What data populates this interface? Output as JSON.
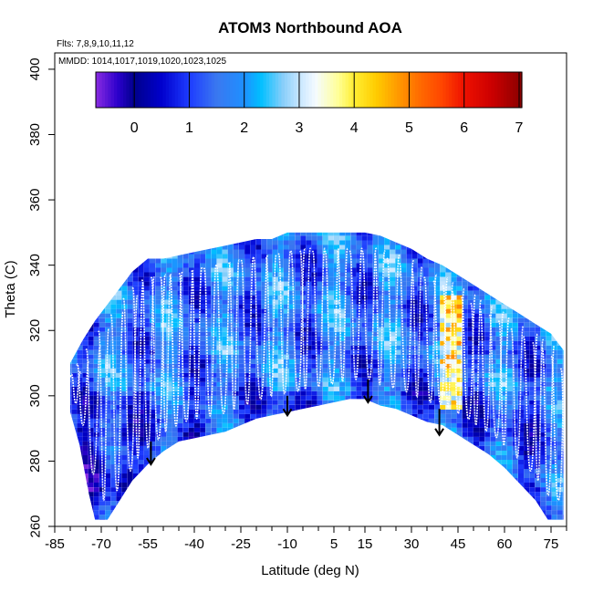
{
  "chart_data": {
    "type": "heatmap",
    "title": "ATOM3 Northbound AOA",
    "annotations": [
      "Flts: 7,8,9,10,11,12",
      "MMDD: 1014,1017,1019,1020,1023,1025"
    ],
    "xlabel": "Latitude (deg N)",
    "ylabel": "Theta (C)",
    "xlim": [
      -85,
      80
    ],
    "ylim": [
      260,
      405
    ],
    "x_ticks": [
      "-85",
      "-70",
      "-55",
      "-40",
      "-25",
      "-10",
      "5",
      "15",
      "30",
      "45",
      "60",
      "75"
    ],
    "x_tick_values": [
      -85,
      -70,
      -55,
      -40,
      -25,
      -10,
      5,
      15,
      30,
      45,
      60,
      75
    ],
    "x_minor_step": 5,
    "y_ticks": [
      "260",
      "280",
      "300",
      "320",
      "340",
      "360",
      "380",
      "400"
    ],
    "y_tick_values": [
      260,
      280,
      300,
      320,
      340,
      360,
      380,
      400
    ],
    "colorbar": {
      "range": [
        -0.7,
        7.05
      ],
      "ticks": [
        "0",
        "1",
        "2",
        "3",
        "4",
        "5",
        "6",
        "7"
      ],
      "tick_values": [
        0,
        1,
        2,
        3,
        4,
        5,
        6,
        7
      ],
      "stops": [
        [
          -0.7,
          "#8a2be2"
        ],
        [
          -0.3,
          "#2b00cc"
        ],
        [
          0.0,
          "#00008b"
        ],
        [
          0.5,
          "#0000cd"
        ],
        [
          1.0,
          "#1e3cff"
        ],
        [
          1.5,
          "#3a78f0"
        ],
        [
          2.0,
          "#1e90ff"
        ],
        [
          2.3,
          "#00bfff"
        ],
        [
          2.7,
          "#87cefa"
        ],
        [
          3.0,
          "#c6e6ff"
        ],
        [
          3.3,
          "#f5fbff"
        ],
        [
          3.7,
          "#ffff99"
        ],
        [
          4.0,
          "#ffee33"
        ],
        [
          4.4,
          "#ffcc00"
        ],
        [
          4.8,
          "#ff9900"
        ],
        [
          5.2,
          "#ff6a00"
        ],
        [
          5.6,
          "#ff4500"
        ],
        [
          6.0,
          "#ee1100"
        ],
        [
          6.5,
          "#cc0000"
        ],
        [
          7.05,
          "#8b0000"
        ]
      ]
    },
    "envelope_top": [
      [
        -80,
        310
      ],
      [
        -76,
        317
      ],
      [
        -72,
        323
      ],
      [
        -68,
        328
      ],
      [
        -64,
        333
      ],
      [
        -60,
        338
      ],
      [
        -55,
        342
      ],
      [
        -50,
        342
      ],
      [
        -45,
        343
      ],
      [
        -40,
        344
      ],
      [
        -35,
        345
      ],
      [
        -30,
        346
      ],
      [
        -25,
        347
      ],
      [
        -20,
        348
      ],
      [
        -15,
        348
      ],
      [
        -10,
        350
      ],
      [
        -5,
        350
      ],
      [
        0,
        350
      ],
      [
        5,
        350
      ],
      [
        10,
        350
      ],
      [
        15,
        350
      ],
      [
        20,
        349
      ],
      [
        25,
        347
      ],
      [
        30,
        345
      ],
      [
        35,
        342
      ],
      [
        40,
        340
      ],
      [
        45,
        337
      ],
      [
        50,
        334
      ],
      [
        55,
        331
      ],
      [
        60,
        328
      ],
      [
        65,
        325
      ],
      [
        70,
        322
      ],
      [
        75,
        319
      ],
      [
        79,
        314
      ]
    ],
    "envelope_bottom": [
      [
        -80,
        295
      ],
      [
        -77,
        285
      ],
      [
        -74,
        270
      ],
      [
        -72,
        262
      ],
      [
        -68,
        262
      ],
      [
        -64,
        268
      ],
      [
        -60,
        274
      ],
      [
        -55,
        279
      ],
      [
        -50,
        283
      ],
      [
        -45,
        286
      ],
      [
        -40,
        287
      ],
      [
        -35,
        288
      ],
      [
        -30,
        289
      ],
      [
        -25,
        291
      ],
      [
        -20,
        293
      ],
      [
        -15,
        294
      ],
      [
        -10,
        295
      ],
      [
        -5,
        296
      ],
      [
        0,
        297
      ],
      [
        5,
        298
      ],
      [
        10,
        299
      ],
      [
        15,
        299
      ],
      [
        20,
        297
      ],
      [
        25,
        296
      ],
      [
        30,
        294
      ],
      [
        35,
        292
      ],
      [
        40,
        291
      ],
      [
        45,
        288
      ],
      [
        50,
        285
      ],
      [
        55,
        282
      ],
      [
        60,
        278
      ],
      [
        65,
        273
      ],
      [
        70,
        268
      ],
      [
        74,
        262
      ],
      [
        79,
        262
      ]
    ],
    "profile_latitudes": [
      -79,
      -77,
      -74,
      -70,
      -66,
      -62,
      -59,
      -56,
      -53,
      -50,
      -47,
      -44,
      -40,
      -36,
      -32,
      -28,
      -24,
      -20,
      -16,
      -12,
      -8,
      -5,
      -1,
      3,
      7,
      11,
      15,
      19,
      23,
      27,
      31,
      35,
      38,
      41,
      44,
      47,
      50,
      53,
      56,
      59,
      63,
      67,
      70,
      73,
      76,
      79
    ],
    "high_age_region": {
      "lat": [
        38,
        45
      ],
      "theta": [
        295,
        330
      ],
      "value": 4.8
    },
    "arrows": [
      {
        "lat": -54,
        "theta_from": 286,
        "theta_to": 279
      },
      {
        "lat": -10,
        "theta_from": 300,
        "theta_to": 294
      },
      {
        "lat": 16,
        "theta_from": 305,
        "theta_to": 298
      },
      {
        "lat": 39,
        "theta_from": 296,
        "theta_to": 288
      }
    ]
  }
}
